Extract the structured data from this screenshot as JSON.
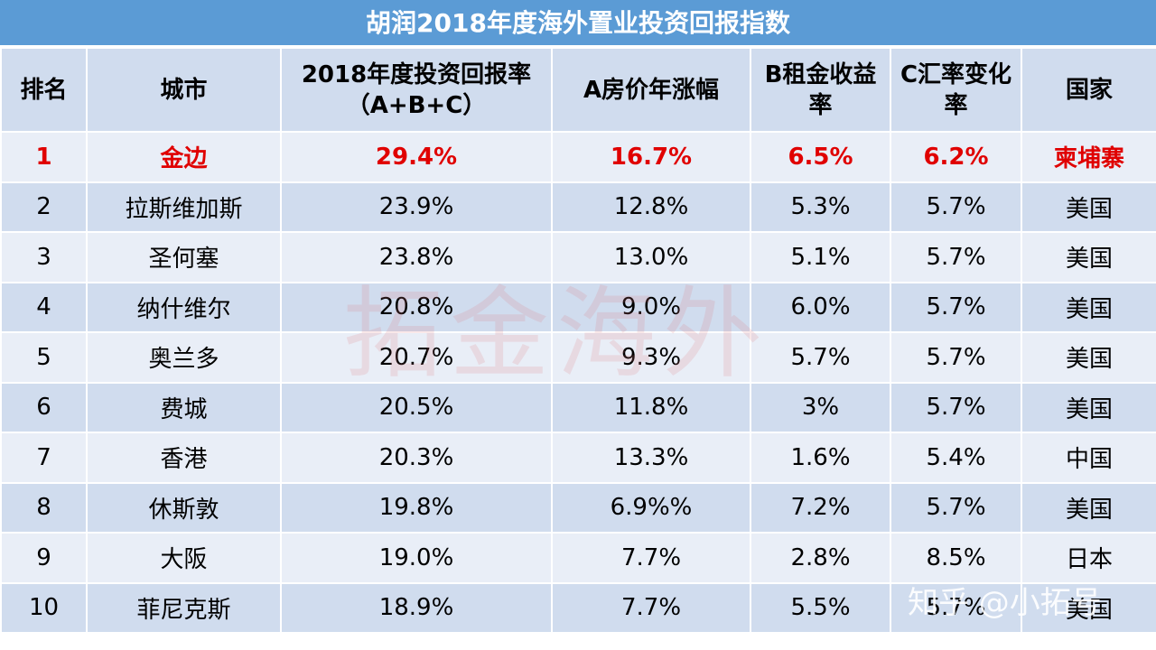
{
  "header": {
    "title": "胡润2018年度海外置业投资回报指数"
  },
  "table": {
    "columns": [
      "排名",
      "城市",
      "2018年度投资回报率（A+B+C）",
      "A房价年涨幅",
      "B租金收益率",
      "C汇率变化率",
      "国家"
    ],
    "rows": [
      [
        "1",
        "金边",
        "29.4%",
        "16.7%",
        "6.5%",
        "6.2%",
        "柬埔寨"
      ],
      [
        "2",
        "拉斯维加斯",
        "23.9%",
        "12.8%",
        "5.3%",
        "5.7%",
        "美国"
      ],
      [
        "3",
        "圣何塞",
        "23.8%",
        "13.0%",
        "5.1%",
        "5.7%",
        "美国"
      ],
      [
        "4",
        "纳什维尔",
        "20.8%",
        "9.0%",
        "6.0%",
        "5.7%",
        "美国"
      ],
      [
        "5",
        "奥兰多",
        "20.7%",
        "9.3%",
        "5.7%",
        "5.7%",
        "美国"
      ],
      [
        "6",
        "费城",
        "20.5%",
        "11.8%",
        "3%",
        "5.7%",
        "美国"
      ],
      [
        "7",
        "香港",
        "20.3%",
        "13.3%",
        "1.6%",
        "5.4%",
        "中国"
      ],
      [
        "8",
        "休斯敦",
        "19.8%",
        "6.9%%",
        "7.2%",
        "5.7%",
        "美国"
      ],
      [
        "9",
        "大阪",
        "19.0%",
        "7.7%",
        "2.8%",
        "8.5%",
        "日本"
      ],
      [
        "10",
        "菲尼克斯",
        "18.9%",
        "7.7%",
        "5.5%",
        "5.7%",
        "美国"
      ]
    ]
  },
  "watermark": "拓金海外",
  "credit": "知乎 @小拓号"
}
